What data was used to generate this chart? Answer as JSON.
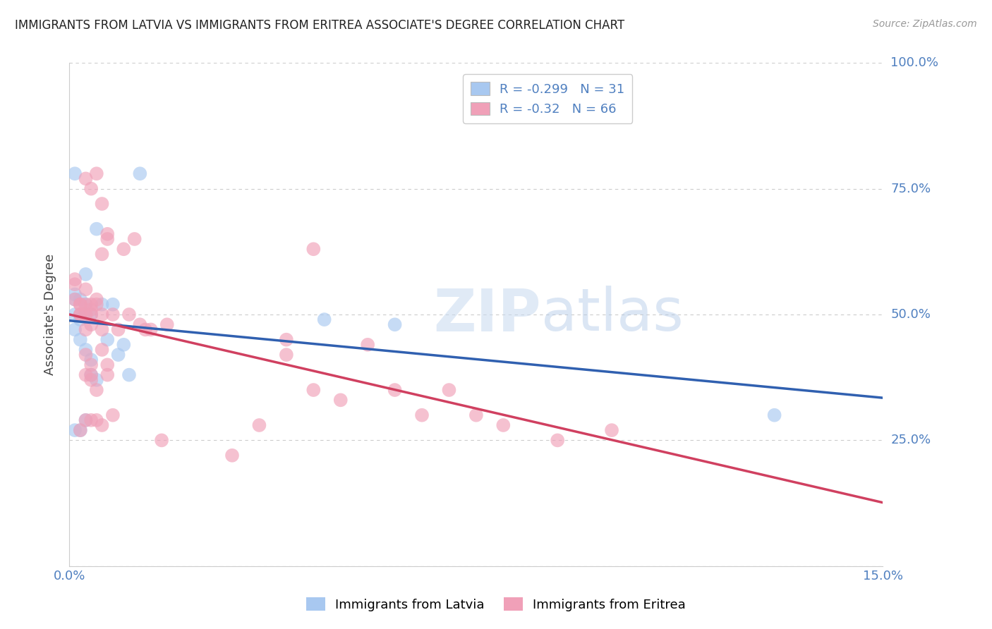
{
  "title": "IMMIGRANTS FROM LATVIA VS IMMIGRANTS FROM ERITREA ASSOCIATE'S DEGREE CORRELATION CHART",
  "source": "Source: ZipAtlas.com",
  "ylabel": "Associate's Degree",
  "background_color": "#ffffff",
  "grid_color": "#cccccc",
  "latvia_color": "#a8c8f0",
  "eritrea_color": "#f0a0b8",
  "latvia_line_color": "#3060b0",
  "eritrea_line_color": "#d04060",
  "tick_color": "#5080c0",
  "latvia_R": -0.299,
  "latvia_N": 31,
  "eritrea_R": -0.32,
  "eritrea_N": 66,
  "watermark": "ZIPatlas",
  "xlim": [
    0.0,
    0.15
  ],
  "ylim": [
    0.0,
    1.0
  ],
  "yticks": [
    0.0,
    0.25,
    0.5,
    0.75,
    1.0
  ],
  "ytick_labels": [
    "0.0%",
    "25.0%",
    "50.0%",
    "75.0%",
    "100.0%"
  ],
  "xticks": [
    0.0,
    0.025,
    0.05,
    0.075,
    0.1,
    0.125,
    0.15
  ],
  "xtick_labels": [
    "0.0%",
    "",
    "",
    "",
    "",
    "",
    "15.0%"
  ],
  "latvia_x": [
    0.001,
    0.001,
    0.001,
    0.001,
    0.001,
    0.002,
    0.002,
    0.002,
    0.002,
    0.003,
    0.003,
    0.003,
    0.003,
    0.004,
    0.004,
    0.004,
    0.005,
    0.005,
    0.006,
    0.007,
    0.008,
    0.009,
    0.01,
    0.011,
    0.013,
    0.003,
    0.002,
    0.001,
    0.047,
    0.13,
    0.06
  ],
  "latvia_y": [
    0.54,
    0.53,
    0.5,
    0.47,
    0.27,
    0.53,
    0.5,
    0.45,
    0.27,
    0.52,
    0.5,
    0.43,
    0.29,
    0.5,
    0.38,
    0.41,
    0.67,
    0.37,
    0.52,
    0.45,
    0.52,
    0.42,
    0.44,
    0.38,
    0.78,
    0.58,
    0.49,
    0.78,
    0.49,
    0.3,
    0.48
  ],
  "eritrea_x": [
    0.001,
    0.001,
    0.001,
    0.002,
    0.002,
    0.002,
    0.002,
    0.002,
    0.003,
    0.003,
    0.003,
    0.003,
    0.003,
    0.003,
    0.003,
    0.004,
    0.004,
    0.004,
    0.004,
    0.004,
    0.004,
    0.004,
    0.004,
    0.005,
    0.005,
    0.005,
    0.005,
    0.006,
    0.006,
    0.006,
    0.006,
    0.006,
    0.007,
    0.007,
    0.007,
    0.008,
    0.009,
    0.01,
    0.011,
    0.012,
    0.013,
    0.014,
    0.015,
    0.017,
    0.018,
    0.03,
    0.035,
    0.04,
    0.04,
    0.045,
    0.045,
    0.05,
    0.055,
    0.06,
    0.065,
    0.07,
    0.075,
    0.08,
    0.09,
    0.1,
    0.003,
    0.004,
    0.005,
    0.006,
    0.007,
    0.008
  ],
  "eritrea_y": [
    0.53,
    0.56,
    0.57,
    0.52,
    0.5,
    0.52,
    0.5,
    0.27,
    0.55,
    0.52,
    0.5,
    0.47,
    0.42,
    0.38,
    0.29,
    0.51,
    0.5,
    0.52,
    0.48,
    0.4,
    0.38,
    0.37,
    0.29,
    0.53,
    0.52,
    0.35,
    0.29,
    0.62,
    0.5,
    0.47,
    0.43,
    0.28,
    0.66,
    0.65,
    0.38,
    0.5,
    0.47,
    0.63,
    0.5,
    0.65,
    0.48,
    0.47,
    0.47,
    0.25,
    0.48,
    0.22,
    0.28,
    0.42,
    0.45,
    0.63,
    0.35,
    0.33,
    0.44,
    0.35,
    0.3,
    0.35,
    0.3,
    0.28,
    0.25,
    0.27,
    0.77,
    0.75,
    0.78,
    0.72,
    0.4,
    0.3
  ]
}
